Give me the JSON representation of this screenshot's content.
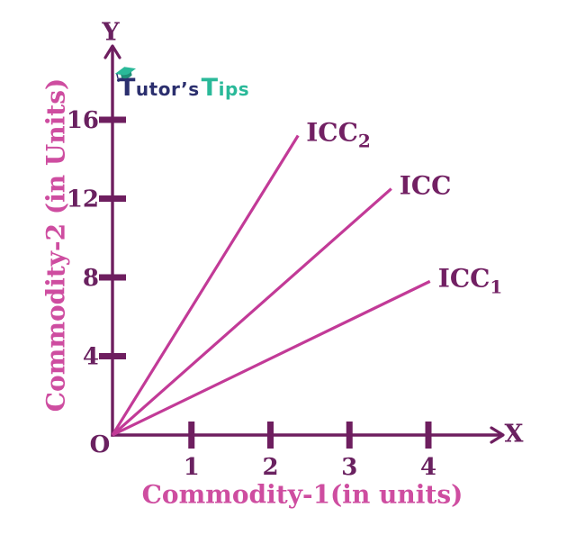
{
  "logo": {
    "part1": "Tutor’s",
    "part2": "Tips",
    "cap_icon": "graduation-cap-icon"
  },
  "chart_data": {
    "type": "line",
    "title": "",
    "xlabel": "Commodity-1(in units)",
    "ylabel": "Commodity-2 (in Units)",
    "x_axis_letter": "X",
    "y_axis_letter": "Y",
    "origin_label": "O",
    "x_ticks": [
      1,
      2,
      3,
      4
    ],
    "y_ticks": [
      4,
      8,
      12,
      16
    ],
    "xlim": [
      0,
      4.9
    ],
    "ylim": [
      0,
      19.7
    ],
    "grid": false,
    "legend_position": "none",
    "series": [
      {
        "name": "ICC2",
        "label": "ICC",
        "subscript": "2",
        "points": [
          [
            0,
            0
          ],
          [
            2.35,
            15.2
          ]
        ]
      },
      {
        "name": "ICC",
        "label": "ICC",
        "subscript": "",
        "points": [
          [
            0,
            0
          ],
          [
            3.53,
            12.5
          ]
        ]
      },
      {
        "name": "ICC1",
        "label": "ICC",
        "subscript": "1",
        "points": [
          [
            0,
            0
          ],
          [
            4.02,
            7.8
          ]
        ]
      }
    ]
  },
  "colors": {
    "background": "#ffffff",
    "axis": "#6e1e5f",
    "line_pink": "#c23a97",
    "axis_title_pink": "#ce4da0",
    "tick_label": "#6a2160",
    "series_label": "#722063",
    "logo_navy": "#2b2f6e",
    "logo_teal": "#2ab999"
  }
}
